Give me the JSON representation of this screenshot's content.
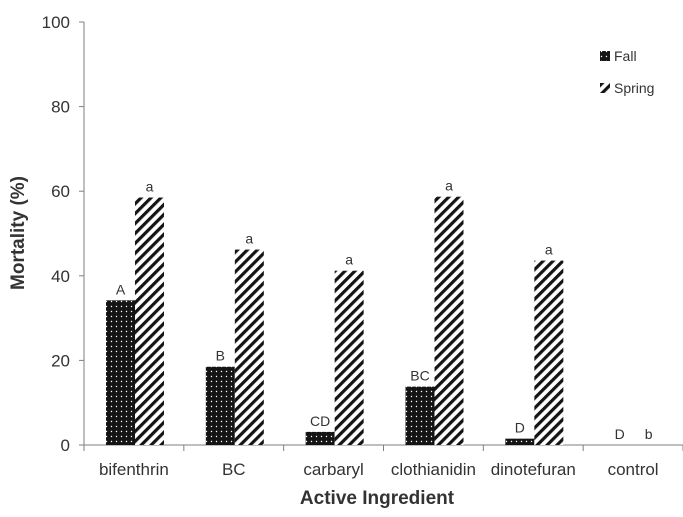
{
  "chart_data": {
    "type": "bar",
    "title": "",
    "xlabel": "Active Ingredient",
    "ylabel": "Mortality (%)",
    "ylim": [
      0,
      100
    ],
    "yticks": [
      0,
      20,
      40,
      60,
      80,
      100
    ],
    "grid": false,
    "legend_position": "top-right",
    "categories": [
      "bifenthrin",
      "BC",
      "carbaryl",
      "clothianidin",
      "dinotefuran",
      "control"
    ],
    "series": [
      {
        "name": "Fall",
        "pattern": "dots",
        "color": "#1a1a1a",
        "values": [
          34.2,
          18.5,
          3.1,
          13.8,
          1.5,
          0
        ],
        "labels": [
          "A",
          "B",
          "CD",
          "BC",
          "D",
          "D"
        ]
      },
      {
        "name": "Spring",
        "pattern": "diagonal-stripes",
        "color": "#1a1a1a",
        "values": [
          58.5,
          46.2,
          41.2,
          58.7,
          43.6,
          0
        ],
        "labels": [
          "a",
          "a",
          "a",
          "a",
          "a",
          "b"
        ]
      }
    ]
  }
}
